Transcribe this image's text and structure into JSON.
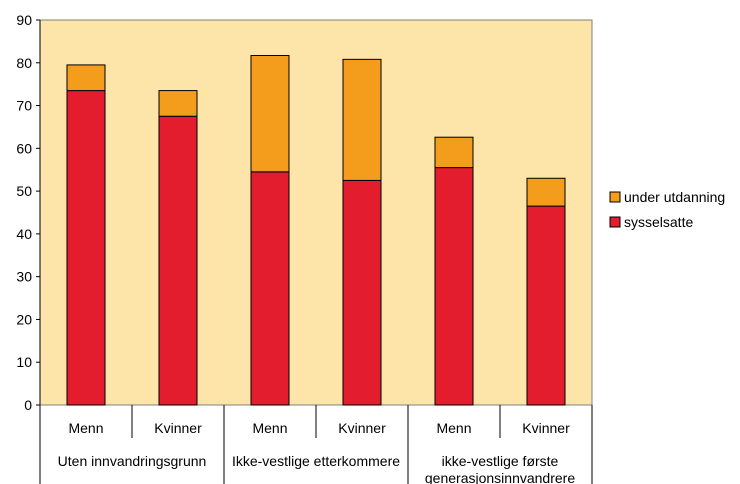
{
  "chart_data": {
    "type": "bar",
    "stacked": true,
    "categories": [
      "Menn",
      "Kvinner",
      "Menn",
      "Kvinner",
      "Menn",
      "Kvinner"
    ],
    "groups": [
      {
        "label": "Uten innvandringsgrunn",
        "span": 2
      },
      {
        "label": "Ikke-vestlige etterkommere",
        "span": 2
      },
      {
        "label": "ikke-vestlige første generasjonsinnvandrere",
        "span": 2
      }
    ],
    "series": [
      {
        "name": "sysselsatte",
        "color": "#e31d2d",
        "values": [
          73.5,
          67.5,
          54.5,
          52.5,
          55.5,
          46.5
        ]
      },
      {
        "name": "under utdanning",
        "color": "#f49c1c",
        "values": [
          6.0,
          6.0,
          27.2,
          28.3,
          7.1,
          6.5
        ]
      }
    ],
    "y_ticks": [
      "0",
      "10",
      "20",
      "30",
      "40",
      "50",
      "60",
      "70",
      "80",
      "90"
    ],
    "ylim": [
      0,
      90
    ],
    "plot_background": "#fde4a8",
    "legend_position": "right",
    "legend_order": [
      "under utdanning",
      "sysselsatte"
    ],
    "grid": false
  }
}
